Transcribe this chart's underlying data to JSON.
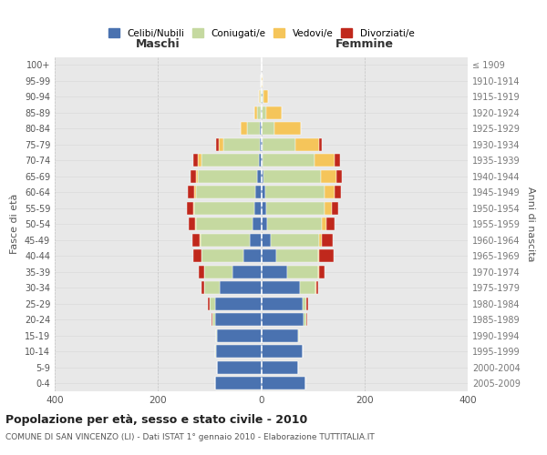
{
  "age_groups": [
    "0-4",
    "5-9",
    "10-14",
    "15-19",
    "20-24",
    "25-29",
    "30-34",
    "35-39",
    "40-44",
    "45-49",
    "50-54",
    "55-59",
    "60-64",
    "65-69",
    "70-74",
    "75-79",
    "80-84",
    "85-89",
    "90-94",
    "95-99",
    "100+"
  ],
  "birth_years": [
    "2005-2009",
    "2000-2004",
    "1995-1999",
    "1990-1994",
    "1985-1989",
    "1980-1984",
    "1975-1979",
    "1970-1974",
    "1965-1969",
    "1960-1964",
    "1955-1959",
    "1950-1954",
    "1945-1949",
    "1940-1944",
    "1935-1939",
    "1930-1934",
    "1925-1929",
    "1920-1924",
    "1915-1919",
    "1910-1914",
    "≤ 1909"
  ],
  "maschi": {
    "celibi": [
      90,
      85,
      88,
      85,
      90,
      90,
      80,
      55,
      35,
      22,
      16,
      14,
      12,
      8,
      5,
      3,
      2,
      1,
      0,
      0,
      0
    ],
    "coniugati": [
      0,
      0,
      1,
      2,
      5,
      10,
      30,
      55,
      80,
      95,
      110,
      115,
      115,
      115,
      110,
      70,
      25,
      7,
      3,
      1,
      0
    ],
    "vedovi": [
      0,
      0,
      0,
      0,
      0,
      0,
      0,
      1,
      1,
      2,
      2,
      3,
      3,
      4,
      8,
      10,
      12,
      5,
      2,
      0,
      0
    ],
    "divorziati": [
      0,
      0,
      0,
      1,
      2,
      3,
      5,
      10,
      16,
      14,
      12,
      12,
      12,
      10,
      8,
      5,
      0,
      0,
      0,
      0,
      0
    ]
  },
  "femmine": {
    "nubili": [
      85,
      72,
      80,
      72,
      82,
      80,
      75,
      50,
      30,
      18,
      12,
      10,
      8,
      5,
      3,
      2,
      1,
      1,
      2,
      0,
      0
    ],
    "coniugate": [
      0,
      0,
      1,
      2,
      5,
      8,
      30,
      60,
      80,
      95,
      105,
      112,
      115,
      110,
      100,
      65,
      25,
      8,
      3,
      0,
      0
    ],
    "vedove": [
      0,
      0,
      0,
      0,
      0,
      0,
      1,
      2,
      2,
      5,
      10,
      15,
      20,
      30,
      40,
      45,
      50,
      30,
      8,
      2,
      0
    ],
    "divorziate": [
      0,
      0,
      0,
      0,
      2,
      3,
      5,
      10,
      28,
      20,
      15,
      12,
      12,
      12,
      10,
      5,
      0,
      0,
      0,
      0,
      0
    ]
  },
  "colors": {
    "celibi": "#4A72B0",
    "coniugati": "#C5D9A0",
    "vedovi": "#F5C55A",
    "divorziati": "#C0281C"
  },
  "xlim": 400,
  "title": "Popolazione per età, sesso e stato civile - 2010",
  "subtitle": "COMUNE DI SAN VINCENZO (LI) - Dati ISTAT 1° gennaio 2010 - Elaborazione TUTTITALIA.IT",
  "ylabel_left": "Fasce di età",
  "ylabel_right": "Anni di nascita",
  "xlabel_maschi": "Maschi",
  "xlabel_femmine": "Femmine",
  "bg_color": "#eaeaea",
  "grid_color": "#cccccc"
}
